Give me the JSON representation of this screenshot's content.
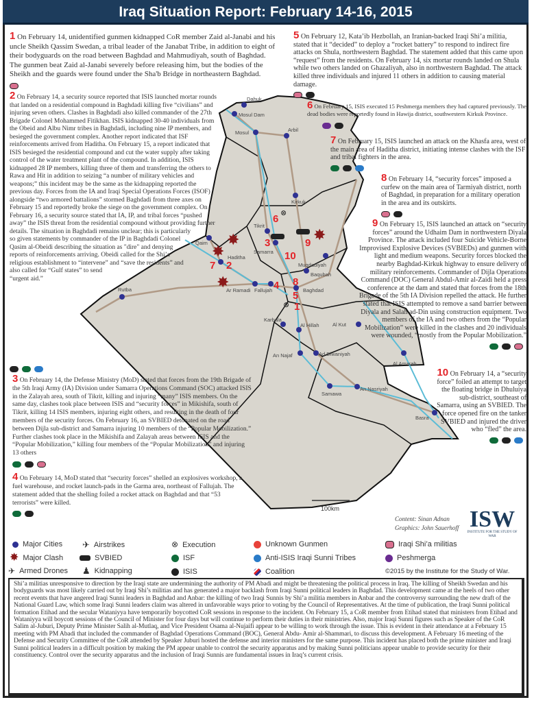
{
  "title": "Iraq Situation Report: February 14-16, 2015",
  "colors": {
    "title_bar": "#1d3c5c",
    "event_number": "#e32328",
    "city": "#2e3192",
    "clash": "#8b1a1a",
    "isf": "#0f6b3a",
    "isis": "#222222",
    "unknown_gunmen": "#e8423a",
    "anti_isis_sunni_tribes": "#2a7bc8",
    "shia_militias": "#d9708f",
    "peshmerga": "#6a2c91",
    "map_land": "#d9d6ce",
    "river": "#5bbcd6",
    "road": "#b09a86"
  },
  "events": [
    {
      "number": "1",
      "text": "On February 14, unidentified gunmen kidnapped CoR member Zaid al-Janabi and his uncle Sheikh Qassim Swedan, a tribal leader of the Janabat Tribe, in addition to eight of their bodyguards on the road between Baghdad and Mahmudiyah, south of Baghdad. The gunmen beat Zaid al-Janabi severely before releasing him, but the bodies of the Sheikh and the guards were found under the Sha'b Bridge in northeastern Baghdad.",
      "actors": [
        "shia_militias"
      ]
    },
    {
      "number": "2",
      "text": "On February 14, a security source reported that ISIS launched mortar rounds that landed on a residential compound in Baghdadi killing five “civilians” and injuring seven others. Clashes in Baghdadi also killed commander of the 27th Brigade Colonel Mohammed Fitikhan. ISIS kidnapped 30-40 individuals from the Obeid and Albu Nimr tribes in Baghdadi, including nine IP members, and besieged the government complex. Another report indicated that ISF reinforcements arrived from Haditha. On February 15, a report indicated that ISIS besieged the residential compound and cut the water supply after taking control of the water treatment plant of the compound. In addition, ISIS kidnapped 28 IP members, killing three of them and transferring the others to Rawa and Hit in addition to seizing “a number of military vehicles and weapons;” this incident may be the same as the kidnapping reported the previous day. Forces from the IA and Iraqi Special Operations Forces (ISOF) alongside “two armored battalions” stormed Baghdadi from three axes on February 15 and reportedly broke the siege on the government complex. On February 16, a security source stated that IA, IP, and tribal forces “pushed away” the ISIS threat from the residential compound without providing further details. The situation in Baghdadi remains unclear; this is particularly so given statements by commander of the IP in Baghdadi Colonel Qasim al-Obeidi describing the situation as \"dire\" and denying reports of reinforcements arriving. Obeidi called for the Shi’a religious establishment to “intervene” and “save the residents” and also called for “Gulf states” to send “urgent aid.”",
      "actors": [
        "isis",
        "isf",
        "anti_isis_sunni_tribes"
      ]
    },
    {
      "number": "3",
      "text": "On February 14, the Defense Ministry (MoD) stated that forces from the 19th Brigade of the 5th Iraqi Army (IA) Division under Samarra Operations Command (SOC) attacked ISIS in the Zalayah area, south of Tikrit, killing and injuring “many” ISIS members. On the same day, clashes took place between ISIS and “security forces” in Mikishifa, south of Tikrit, killing 14 ISIS members, injuring eight others, and resulting in the death of four members of the security forces. On February 16, an SVBIED detonated on the road between Dijla sub-district and Samarra injuring 10 members of the “Popular Mobilization.” Further clashes took place in the Mikishifa and Zalayah areas between ISIS and the “Popular Mobilization,” killing four members of the “Popular Mobilization” and injuring 13 others",
      "actors": [
        "isf",
        "isis",
        "shia_militias"
      ]
    },
    {
      "number": "4",
      "text": "On February 14, MoD stated that “security forces” shelled an explosives workshop, a fuel warehouse, and rocket launch-pads in the Garma area, northeast of Fallujah. The statement added that the shelling foiled a rocket attack on Baghdad and that “53 terrorists” were killed.",
      "actors": [
        "isf",
        "isis"
      ]
    },
    {
      "number": "5",
      "text": "On February 12, Kata’ib Hezbollah, an Iranian-backed Iraqi Shi’a militia, stated that it “decided” to deploy a “rocket battery” to respond to indirect fire attacks on Shula, northwestern Baghdad. The statement added that this came upon “request” from the residents. On February 14, six mortar rounds landed on Shula while two others landed on Ghazaliyah, also in northwestern Baghdad. The attack killed three individuals and injured 11 others in addition to causing material damage.",
      "actors": [
        "shia_militias",
        "isis"
      ]
    },
    {
      "number": "6",
      "text": "On February 15, ISIS executed 15 Peshmerga members they had captured previously. The dead bodies were reportedly found in Hawija district, southwestern Kirkuk Province.",
      "actors": [
        "peshmerga",
        "isis"
      ]
    },
    {
      "number": "7",
      "text": "On February 15, ISIS launched an attack on the Khasfa area, west of the main area of Haditha district, initiating intense clashes with the ISF and tribal fighters in the area.",
      "actors": [
        "isf",
        "isis",
        "anti_isis_sunni_tribes"
      ]
    },
    {
      "number": "8",
      "text": "On February 14, “security forces” imposed a curfew on the main area of Tarmiyah district, north of Baghdad, in preparation for a military operation in the area and its outskirts.",
      "actors": [
        "shia_militias",
        "isis"
      ]
    },
    {
      "number": "9",
      "text": "On February 15, ISIS launched an attack on “security forces” around the Udhaim Dam in northwestern Diyala Province. The attack included four Suicide Vehicle-Borne Improvised Explosive Devices (SVBIEDs) and gunmen with light and medium weapons. Security forces blocked the nearby Baghdad-Kirkuk highway to ensure delivery of military reinforcements. Commander of Dijla Operations Command (DOC) General Abdul-Amir al-Zaidi held a press conference at the dam and stated that forces from the 18th Brigade of the 5th IA Division repelled the attack. He further stated that ISIS attempted to remove a sand barrier between Diyala and Salah ad-Din using construction equipment. Two members of the IA and two others from the “Popular Mobilization” were killed in the clashes and 20 individuals were wounded, “mostly from the Popular Mobilization.”",
      "actors": [
        "isf",
        "isis",
        "shia_militias"
      ]
    },
    {
      "number": "10",
      "text": "On February 14, a “security force” foiled an attempt to target the floating bridge in Dhuluiya sub-district, southeast of Samarra, using an SVBIED. The force opened fire on the tanker SVBIED and injured the driver who “fled” the area.",
      "actors": [
        "isf",
        "isis",
        "anti_isis_sunni_tribes"
      ]
    }
  ],
  "map": {
    "cities": [
      "Dahuk",
      "Mosul Dam",
      "Mosul",
      "Arbil",
      "Kirkuk",
      "Tikrit",
      "Samarra",
      "Muqdadiyah",
      "Baqubah",
      "Baghdad",
      "Fallujah",
      "Ar Ramadi",
      "Haditha",
      "Qaim",
      "Rutba",
      "Karbala",
      "Al Hillah",
      "Al Kut",
      "An Najaf",
      "Ad Diwaniyah",
      "Samawa",
      "An Nasriyah",
      "Al Amarah",
      "Basra"
    ],
    "scale_label": "100km"
  },
  "legend": {
    "major_cities": "Major Cities",
    "major_clash": "Major Clash",
    "armed_drones": "Armed Drones",
    "airstrikes": "Airstrikes",
    "svbied": "SVBIED",
    "kidnapping": "Kidnapping",
    "execution": "Execution",
    "isf": "ISF",
    "isis": "ISIS",
    "unknown_gunmen": "Unknown Gunmen",
    "anti_isis": "Anti-ISIS Iraqi Sunni Tribes",
    "coalition": "Coalition",
    "shia_militias": "Iraqi Shi’a militias",
    "peshmerga": "Peshmerga"
  },
  "logo": {
    "text": "ISW",
    "subtitle": "INSTITUTE FOR THE STUDY OF WAR"
  },
  "credits": {
    "content": "Content: Sinan Adnan",
    "graphics": "Graphics: John Sauerhoff",
    "copyright": "©2015 by the Institute for the Study of War."
  },
  "summary": "Shi’a militias unresponsive to direction by the Iraqi state are undermining the authority of PM Abadi and might be threatening the political process in Iraq. The killing of Sheikh Swedan and his bodyguards was most likely carried out by Iraqi Shi’s militias and has generated a major backlash from Iraqi Sunni political leaders in Baghdad. This development came at the heels of two other recent events that have angered Iraqi Sunni leaders in Baghdad and Anbar: the killing of two Iraqi Sunnis by Shi’a militia members in Anbar and the controversy surrounding the new draft of the National Guard Law, which some Iraqi Sunni leaders claim was altered in unfavorable ways prior to voting by the Council of Representatives. At the time of publication, the Iraqi Sunni political formation Etihad and the secular Wataniyya have temporarily boycotted CoR sessions in response to the incident. On February 15, a CoR member from Etihad stated that ministers from Etihad and Wataniyya will boycott sessions of the Council of Minister for four days but will continue to perform their duties in their ministries. Also, major Iraqi Sunni figures such as Speaker of the CoR Salim al-Juburi, Deputy Prime Minister Salih al-Mutlaq, and Vice President Osama al-Nujaifi appear to be willing to work through the issue. This is evident in their attendance at a February 15 meeting with PM Abadi that included the commander of Baghdad Operations Command (BOC), General Abdu- Amir al-Shammari, to discuss this development. A February 16 meeting of the Defense and Security Committee of the CoR attended by Speaker Juburi hosted the defense and interior ministers for the same purpose. This incident has placed both the prime minister and Iraqi Sunni political leaders in a difficult position by making the PM appear unable to control the security apparatus and by making Sunni politicians appear unable to provide security for their constituency. Control over the security apparatus and the inclusion of Iraqi Sunnis are fundamental issues in Iraq’s current crisis."
}
